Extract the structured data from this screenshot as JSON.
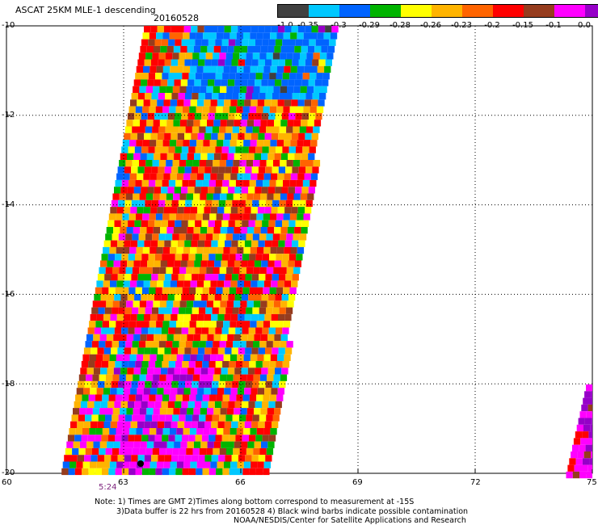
{
  "header": {
    "title": "ASCAT 25KM MLE-1 descending",
    "date": "20160528"
  },
  "colorbar": {
    "colors": [
      "#404040",
      "#00c8ff",
      "#0064ff",
      "#00b400",
      "#ffff00",
      "#ffb400",
      "#ff6400",
      "#ff0000",
      "#963c1e",
      "#ff00ff",
      "#9600c8"
    ],
    "labels": [
      "-1.0",
      "-0.35",
      "-0.3",
      "-0.29",
      "-0.28",
      "-0.26",
      "-0.23",
      "-0.2",
      "-0.15",
      "-0.1",
      "0.0"
    ]
  },
  "axes": {
    "y_labels": [
      "-10",
      "-12",
      "-14",
      "-16",
      "-18",
      "-20"
    ],
    "x_labels": [
      "60",
      "63",
      "66",
      "69",
      "72",
      "75"
    ],
    "lat_range": [
      -20,
      -10
    ],
    "lon_range": [
      60,
      75
    ]
  },
  "time_label": "5:24",
  "notes": {
    "line1": "Note: 1) Times are GMT 2)Times along bottom correspond to measurement at -15S",
    "line2": "3)Data buffer is 22 hrs from 20160528 4) Black wind barbs indicate possible contamination",
    "line3": "NOAA/NESDIS/Center for Satellite Applications and Research"
  }
}
